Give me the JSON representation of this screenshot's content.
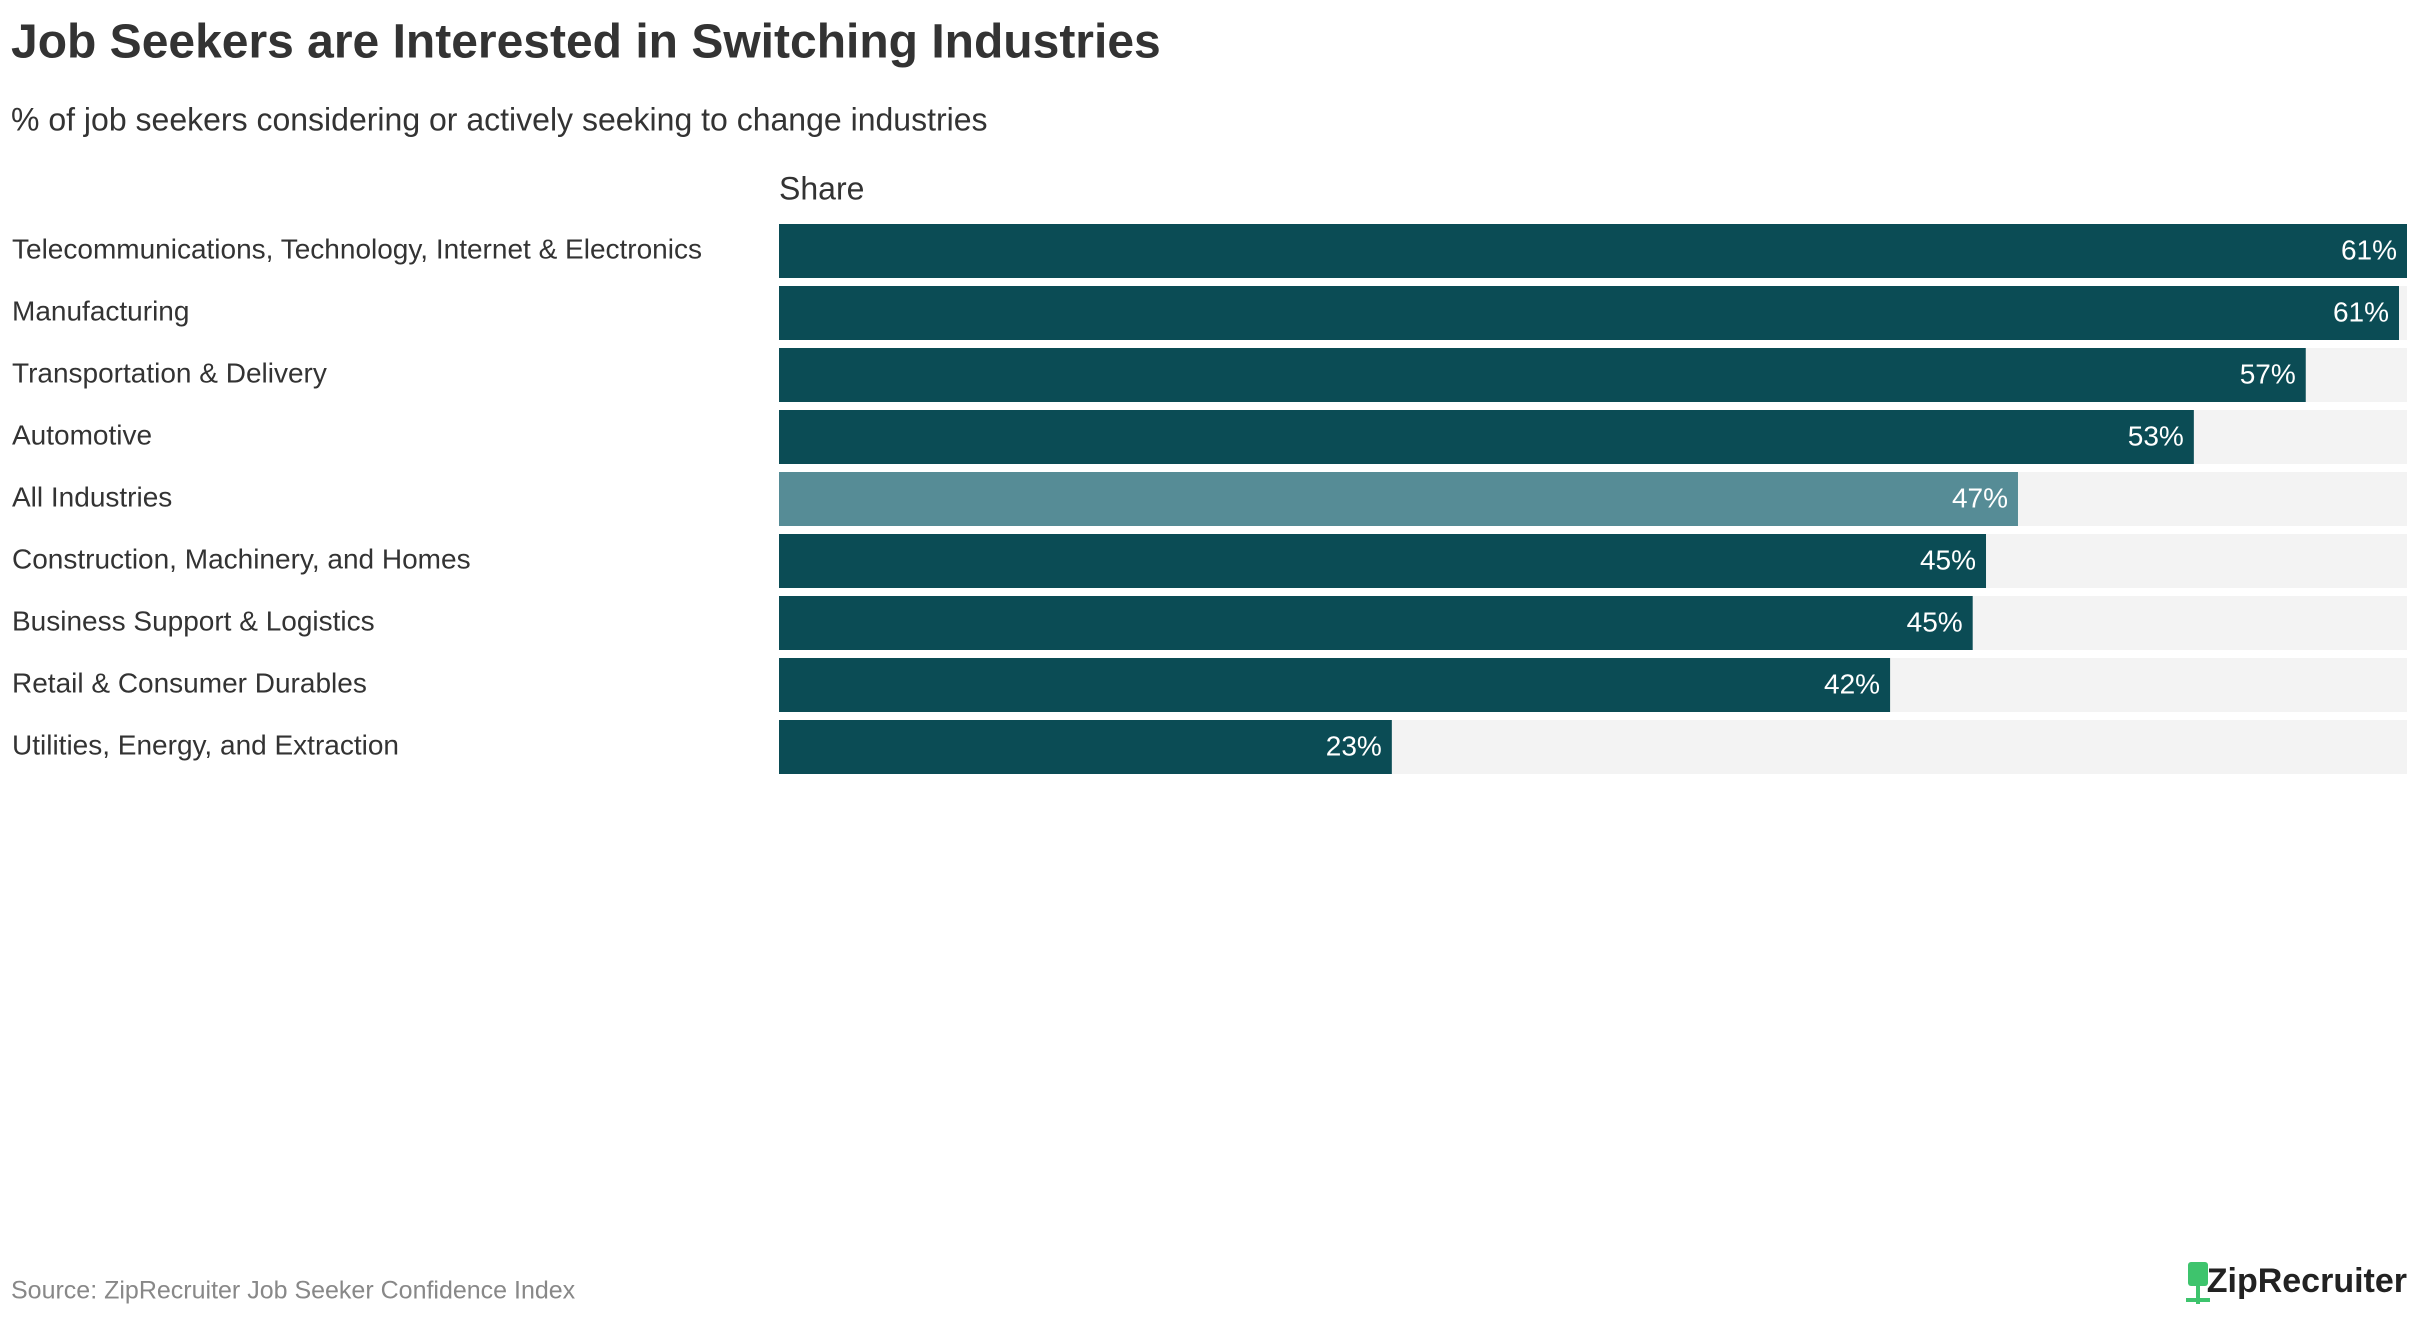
{
  "chart_data": {
    "type": "bar",
    "title": "Job Seekers are Interested in Switching Industries",
    "subtitle": "% of job seekers considering or actively seeking  to change industries",
    "column_header": "Share",
    "source": "Source: ZipRecruiter Job Seeker Confidence Index",
    "logo": "ZipRecruiter",
    "categories": [
      "Telecommunications, Technology, Internet & Electronics",
      "Manufacturing",
      "Transportation & Delivery",
      "Automotive",
      "All Industries",
      "Construction, Machinery, and Homes",
      "Business Support & Logistics",
      "Retail & Consumer Durables",
      "Utilities, Energy, and Extraction"
    ],
    "values": [
      61.1,
      60.8,
      57.3,
      53.1,
      46.5,
      45.3,
      44.8,
      41.7,
      23.0
    ],
    "value_labels": [
      "61%",
      "61%",
      "57%",
      "53%",
      "47%",
      "45%",
      "45%",
      "42%",
      "23%"
    ],
    "colors": [
      "#0b4c55",
      "#0b4c55",
      "#0b4c55",
      "#0b4c55",
      "#568c96",
      "#0b4c55",
      "#0b4c55",
      "#0b4c55",
      "#0b4c55"
    ],
    "track_color": "#f3f3f3",
    "xlim": [
      0,
      61.1
    ]
  }
}
